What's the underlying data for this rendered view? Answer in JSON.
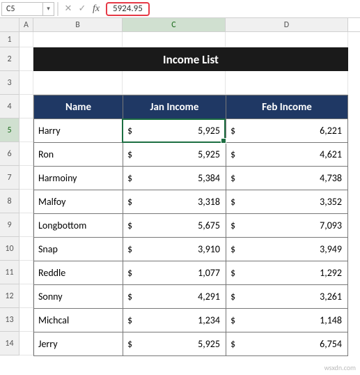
{
  "formula_bar": {
    "cell_ref": "C5",
    "value": "5924.95"
  },
  "columns": [
    "A",
    "B",
    "C",
    "D"
  ],
  "active_column": "C",
  "row_numbers": [
    1,
    2,
    3,
    4,
    5,
    6,
    7,
    8,
    9,
    10,
    11,
    12,
    13,
    14
  ],
  "active_row": 5,
  "title": "Income List",
  "table": {
    "headers": {
      "name": "Name",
      "jan": "Jan Income",
      "feb": "Feb Income"
    },
    "rows": [
      {
        "name": "Harry",
        "jan": "5,925",
        "feb": "6,221"
      },
      {
        "name": "Ron",
        "jan": "5,925",
        "feb": "4,621"
      },
      {
        "name": "Harmoiny",
        "jan": "5,384",
        "feb": "4,738"
      },
      {
        "name": "Malfoy",
        "jan": "3,318",
        "feb": "3,352"
      },
      {
        "name": "Longbottom",
        "jan": "5,675",
        "feb": "7,093"
      },
      {
        "name": "Snap",
        "jan": "3,910",
        "feb": "3,949"
      },
      {
        "name": "Reddle",
        "jan": "1,077",
        "feb": "1,292"
      },
      {
        "name": "Sonny",
        "jan": "4,291",
        "feb": "3,261"
      },
      {
        "name": "Michcal",
        "jan": "1,234",
        "feb": "1,148"
      },
      {
        "name": "Jerry",
        "jan": "5,925",
        "feb": "6,754"
      }
    ]
  },
  "colors": {
    "header_bg": "#1f3864",
    "title_bg": "#1a1a1a",
    "selection": "#1d6f42",
    "highlight": "#e63946"
  },
  "watermark": "wsxdn.com"
}
